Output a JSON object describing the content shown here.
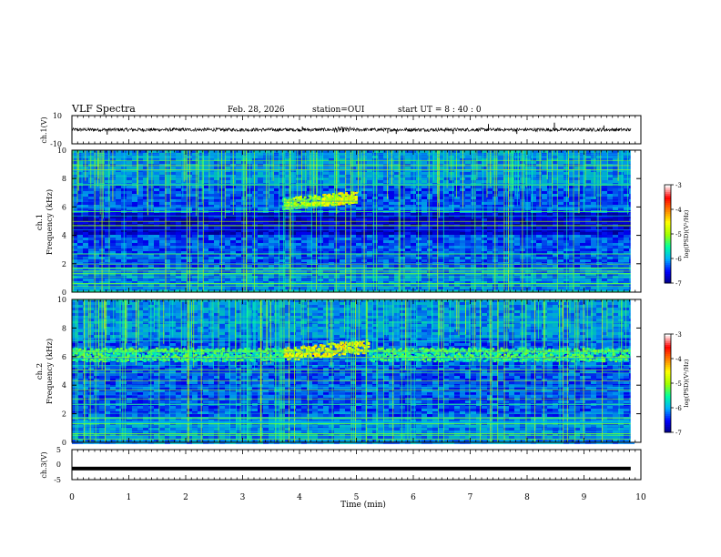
{
  "header": {
    "title": "VLF Spectra",
    "date": "Feb. 28, 2026",
    "station": "station=OUI",
    "start_time": "start  UT =  8 : 40 : 0"
  },
  "chart_data": [
    {
      "type": "line",
      "panel": "ch1-waveform",
      "ylabel": "ch.1(V)",
      "ylim": [
        -10,
        10
      ],
      "yticklabels": [
        "10",
        "-10"
      ],
      "xlim": [
        0,
        10
      ],
      "baseline": 0,
      "noise_amplitude": 1.2,
      "spikes": [
        {
          "t": 0.62,
          "v": -3.5
        },
        {
          "t": 4.05,
          "v": 2.2
        },
        {
          "t": 5.55,
          "v": -2.5
        },
        {
          "t": 5.7,
          "v": -3
        },
        {
          "t": 6.7,
          "v": -3
        },
        {
          "t": 7.32,
          "v": 4
        },
        {
          "t": 7.82,
          "v": -3
        },
        {
          "t": 8.48,
          "v": 5
        },
        {
          "t": 9.35,
          "v": 3
        }
      ]
    },
    {
      "type": "heatmap",
      "panel": "ch1-spectrogram",
      "ylabel": "ch.1\nFrequency (kHz)",
      "ylim": [
        0,
        10
      ],
      "yticks": [
        "0",
        "2",
        "4",
        "6",
        "8",
        "10"
      ],
      "xlim": [
        0,
        10
      ],
      "emission_band_khz": {
        "center": 6.3,
        "width": 0.5,
        "from_min": 3.7,
        "to_min": 5.0,
        "rising_to_khz": 7.2
      },
      "quiet_band_khz": [
        4.0,
        5.8
      ],
      "colorbar": {
        "label": "log(PSD)(V²/Hz)",
        "range": [
          -7,
          -3
        ],
        "ticks": [
          "-3",
          "-4",
          "-5",
          "-6",
          "-7"
        ]
      }
    },
    {
      "type": "heatmap",
      "panel": "ch2-spectrogram",
      "ylabel": "ch.2\nFrequency (kHz)",
      "ylim": [
        0,
        10
      ],
      "yticks": [
        "0",
        "2",
        "4",
        "6",
        "8",
        "10"
      ],
      "xlim": [
        0,
        10
      ],
      "emission_band_khz": {
        "center": 6.2,
        "width": 0.6,
        "from_min": 0,
        "to_min": 9.9,
        "intensified_from": 3.7,
        "intensified_to": 5.2
      },
      "colorbar": {
        "label": "log(PSD)(V²/Hz)",
        "range": [
          -7,
          -3
        ],
        "ticks": [
          "-3",
          "-4",
          "-5",
          "-6",
          "-7"
        ]
      }
    },
    {
      "type": "line",
      "panel": "ch3-waveform",
      "ylabel": "ch.3(V)",
      "ylim": [
        -5,
        5
      ],
      "yticklabels": [
        "5",
        "0",
        "-5"
      ],
      "xlim": [
        0,
        10
      ],
      "baseline": -1.3
    }
  ],
  "xaxis": {
    "label": "Time (min)",
    "ticks": [
      "0",
      "1",
      "2",
      "3",
      "4",
      "5",
      "6",
      "7",
      "8",
      "9",
      "10"
    ]
  },
  "colors": {
    "background": "#000080",
    "colormap": [
      "#000080",
      "#0000ff",
      "#00b0ff",
      "#00ffa0",
      "#a0ff00",
      "#ffff00",
      "#ff8000",
      "#ff0000",
      "#ffffff"
    ]
  }
}
